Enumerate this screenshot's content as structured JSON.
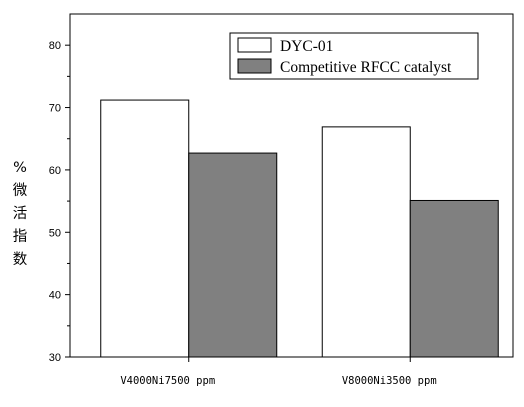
{
  "chart_data": {
    "type": "bar",
    "categories": [
      "V4000Ni7500 ppm",
      "V8000Ni3500 ppm"
    ],
    "series": [
      {
        "name": "DYC-01",
        "values": [
          71.2,
          66.9
        ],
        "color": "#ffffff"
      },
      {
        "name": "Competitive RFCC catalyst",
        "values": [
          62.7,
          55.1
        ],
        "color": "#808080"
      }
    ],
    "xlabel": "",
    "ylabel": [
      "%",
      "微",
      "活",
      "指",
      "数"
    ],
    "ylim": [
      30,
      85
    ],
    "yticks": [
      30,
      40,
      50,
      60,
      70,
      80
    ],
    "legend_position": "top-right",
    "grid": false
  }
}
